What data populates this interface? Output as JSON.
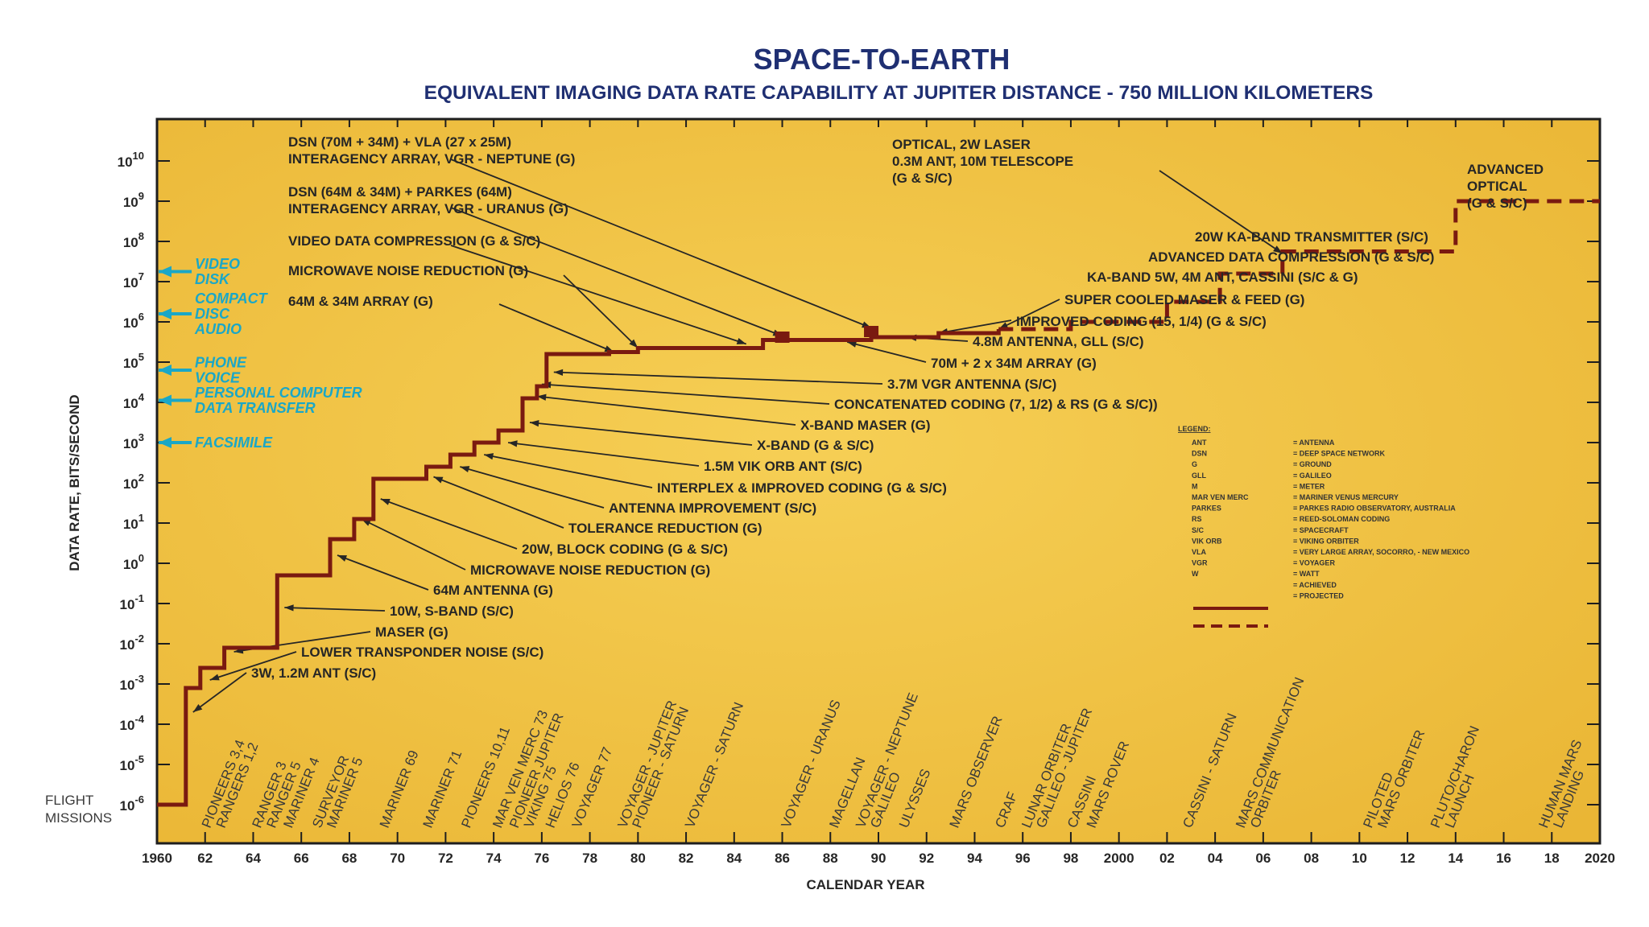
{
  "chart_data": {
    "type": "line",
    "title": "SPACE-TO-EARTH",
    "subtitle": "EQUIVALENT IMAGING DATA RATE CAPABILITY AT JUPITER DISTANCE - 750 MILLION KILOMETERS",
    "xlabel": "CALENDAR YEAR",
    "ylabel": "DATA RATE, BITS/SECOND",
    "xlim": [
      1960,
      2020
    ],
    "ylim_exponent": [
      -6,
      10
    ],
    "y_scale": "log",
    "grid": false,
    "x_ticks": [
      {
        "year": 1960,
        "label": "1960"
      },
      {
        "year": 1962,
        "label": "62"
      },
      {
        "year": 1964,
        "label": "64"
      },
      {
        "year": 1966,
        "label": "66"
      },
      {
        "year": 1968,
        "label": "68"
      },
      {
        "year": 1970,
        "label": "70"
      },
      {
        "year": 1972,
        "label": "72"
      },
      {
        "year": 1974,
        "label": "74"
      },
      {
        "year": 1976,
        "label": "76"
      },
      {
        "year": 1978,
        "label": "78"
      },
      {
        "year": 1980,
        "label": "80"
      },
      {
        "year": 1982,
        "label": "82"
      },
      {
        "year": 1984,
        "label": "84"
      },
      {
        "year": 1986,
        "label": "86"
      },
      {
        "year": 1988,
        "label": "88"
      },
      {
        "year": 1990,
        "label": "90"
      },
      {
        "year": 1992,
        "label": "92"
      },
      {
        "year": 1994,
        "label": "94"
      },
      {
        "year": 1996,
        "label": "96"
      },
      {
        "year": 1998,
        "label": "98"
      },
      {
        "year": 2000,
        "label": "2000"
      },
      {
        "year": 2002,
        "label": "02"
      },
      {
        "year": 2004,
        "label": "04"
      },
      {
        "year": 2006,
        "label": "06"
      },
      {
        "year": 2008,
        "label": "08"
      },
      {
        "year": 2010,
        "label": "10"
      },
      {
        "year": 2012,
        "label": "12"
      },
      {
        "year": 2014,
        "label": "14"
      },
      {
        "year": 2016,
        "label": "16"
      },
      {
        "year": 2018,
        "label": "18"
      },
      {
        "year": 2020,
        "label": "2020"
      }
    ],
    "y_ticks": [
      10,
      9,
      8,
      7,
      6,
      5,
      4,
      3,
      2,
      1,
      0,
      -1,
      -2,
      -3,
      -4,
      -5,
      -6
    ],
    "y_tick_base": "10",
    "series": [
      {
        "name": "ACHIEVED",
        "style": "solid",
        "color": "#7a1a10",
        "points": [
          [
            1960,
            -6
          ],
          [
            1961.2,
            -6
          ],
          [
            1961.2,
            -3.1
          ],
          [
            1961.8,
            -3.1
          ],
          [
            1961.8,
            -2.6
          ],
          [
            1962.8,
            -2.6
          ],
          [
            1962.8,
            -2.1
          ],
          [
            1965,
            -2.1
          ],
          [
            1965,
            -0.3
          ],
          [
            1967.2,
            -0.3
          ],
          [
            1967.2,
            0.6
          ],
          [
            1968.2,
            0.6
          ],
          [
            1968.2,
            1.1
          ],
          [
            1969,
            1.1
          ],
          [
            1969,
            2.1
          ],
          [
            1971.2,
            2.1
          ],
          [
            1971.2,
            2.4
          ],
          [
            1972.2,
            2.4
          ],
          [
            1972.2,
            2.7
          ],
          [
            1973.2,
            2.7
          ],
          [
            1973.2,
            3.0
          ],
          [
            1974.2,
            3.0
          ],
          [
            1974.2,
            3.3
          ],
          [
            1975.2,
            3.3
          ],
          [
            1975.2,
            4.1
          ],
          [
            1975.8,
            4.1
          ],
          [
            1975.8,
            4.4
          ],
          [
            1976.2,
            4.4
          ],
          [
            1976.2,
            5.2
          ],
          [
            1978.8,
            5.2
          ],
          [
            1978.8,
            5.25
          ],
          [
            1980,
            5.25
          ],
          [
            1980,
            5.35
          ],
          [
            1985.2,
            5.35
          ],
          [
            1985.2,
            5.55
          ],
          [
            1989.7,
            5.55
          ],
          [
            1989.7,
            5.62
          ],
          [
            1992.5,
            5.62
          ],
          [
            1992.5,
            5.72
          ],
          [
            1995,
            5.72
          ],
          [
            1995,
            5.82
          ]
        ]
      },
      {
        "name": "PROJECTED",
        "style": "dashed",
        "color": "#7a1a10",
        "points": [
          [
            1995,
            5.82
          ],
          [
            1998,
            5.82
          ],
          [
            1998,
            6.0
          ],
          [
            2002,
            6.0
          ],
          [
            2002,
            6.5
          ],
          [
            2004.2,
            6.5
          ],
          [
            2004.2,
            7.2
          ],
          [
            2006.8,
            7.2
          ],
          [
            2006.8,
            7.75
          ],
          [
            2014,
            7.75
          ],
          [
            2014,
            9.0
          ],
          [
            2020,
            9.0
          ]
        ]
      }
    ],
    "benchmarks": [
      {
        "lines": [
          "VIDEO",
          "DISK"
        ],
        "exponent": 7.25
      },
      {
        "lines": [
          "COMPACT",
          "DISC",
          "AUDIO"
        ],
        "exponent": 6.2
      },
      {
        "lines": [
          "PHONE",
          "VOICE"
        ],
        "exponent": 4.8
      },
      {
        "lines": [
          "PERSONAL COMPUTER",
          "DATA TRANSFER"
        ],
        "exponent": 4.05
      },
      {
        "lines": [
          "FACSIMILE"
        ],
        "exponent": 3.0
      }
    ],
    "annotations": [
      {
        "lines": [
          "DSN (70M + 34M) + VLA (27 x 25M)",
          "INTERAGENCY ARRAY, VGR - NEPTUNE (G)"
        ],
        "target": [
          1989.7,
          5.85
        ]
      },
      {
        "lines": [
          "DSN (64M & 34M) + PARKES (64M)",
          "INTERAGENCY ARRAY, VGR - URANUS (G)"
        ],
        "target": [
          1986,
          5.65
        ]
      },
      {
        "lines": [
          "VIDEO DATA COMPRESSION (G & S/C)"
        ],
        "target": [
          1984.5,
          5.45
        ]
      },
      {
        "lines": [
          "MICROWAVE NOISE REDUCTION (G)"
        ],
        "target": [
          1980,
          5.35
        ]
      },
      {
        "lines": [
          "64M & 34M ARRAY (G)"
        ],
        "target": [
          1979,
          5.25
        ]
      },
      {
        "lines": [
          "OPTICAL, 2W LASER",
          "0.3M ANT, 10M TELESCOPE",
          "(G & S/C)"
        ],
        "target": [
          2006.8,
          7.7
        ]
      },
      {
        "lines": [
          "ADVANCED",
          "OPTICAL",
          "(G & S/C)"
        ],
        "target": null
      },
      {
        "lines": [
          "20W KA-BAND TRANSMITTER (S/C)"
        ],
        "target": null
      },
      {
        "lines": [
          "ADVANCED DATA COMPRESSION (G & S/C)"
        ],
        "target": null
      },
      {
        "lines": [
          "KA-BAND 5W, 4M ANT, CASSINI (S/C & G)"
        ],
        "target": null
      },
      {
        "lines": [
          "SUPER COOLED MASER & FEED (G)"
        ],
        "target": [
          1995,
          5.82
        ]
      },
      {
        "lines": [
          "IMPROVED CODING (15, 1/4) (G & S/C)"
        ],
        "target": [
          1992.5,
          5.72
        ]
      },
      {
        "lines": [
          "4.8M ANTENNA, GLL (S/C)"
        ],
        "target": [
          1991.2,
          5.62
        ]
      },
      {
        "lines": [
          "70M + 2 x 34M ARRAY (G)"
        ],
        "target": [
          1988.7,
          5.5
        ]
      },
      {
        "lines": [
          "3.7M VGR ANTENNA (S/C)"
        ],
        "target": [
          1976.5,
          4.75
        ]
      },
      {
        "lines": [
          "CONCATENATED CODING (7, 1/2) & RS (G & S/C))"
        ],
        "target": [
          1976.0,
          4.45
        ]
      },
      {
        "lines": [
          "X-BAND MASER (G)"
        ],
        "target": [
          1975.8,
          4.15
        ]
      },
      {
        "lines": [
          "X-BAND (G & S/C)"
        ],
        "target": [
          1975.5,
          3.5
        ]
      },
      {
        "lines": [
          "1.5M VIK ORB ANT (S/C)"
        ],
        "target": [
          1174.6,
          3.0
        ]
      },
      {
        "lines": [
          "INTERPLEX & IMPROVED CODING (G & S/C)"
        ],
        "target": [
          1973.6,
          2.7
        ]
      },
      {
        "lines": [
          "ANTENNA IMPROVEMENT (S/C)"
        ],
        "target": [
          1972.6,
          2.4
        ]
      },
      {
        "lines": [
          "TOLERANCE REDUCTION (G)"
        ],
        "target": [
          1971.5,
          2.15
        ]
      },
      {
        "lines": [
          "20W,  BLOCK CODING (G & S/C)"
        ],
        "target": [
          1969.3,
          1.6
        ]
      },
      {
        "lines": [
          "MICROWAVE NOISE REDUCTION (G)"
        ],
        "target": [
          1968.5,
          1.1
        ]
      },
      {
        "lines": [
          "64M ANTENNA (G)"
        ],
        "target": [
          1967.5,
          0.2
        ]
      },
      {
        "lines": [
          "10W, S-BAND (S/C)"
        ],
        "target": [
          1965.3,
          -1.1
        ]
      },
      {
        "lines": [
          "MASER (G)"
        ],
        "target": [
          1963.2,
          -2.2
        ]
      },
      {
        "lines": [
          "LOWER TRANSPONDER NOISE (S/C)"
        ],
        "target": [
          1962.2,
          -2.9
        ]
      },
      {
        "lines": [
          "3W, 1.2M ANT (S/C)"
        ],
        "target": [
          1961.5,
          -3.7
        ]
      }
    ],
    "legend": {
      "title": "LEGEND:",
      "placement": "right",
      "entries": [
        [
          "ANT",
          "= ANTENNA"
        ],
        [
          "DSN",
          "= DEEP SPACE NETWORK"
        ],
        [
          "G",
          "= GROUND"
        ],
        [
          "GLL",
          "= GALILEO"
        ],
        [
          "M",
          "= METER"
        ],
        [
          "MAR VEN MERC",
          "= MARINER VENUS MERCURY"
        ],
        [
          "PARKES",
          "= PARKES RADIO OBSERVATORY, AUSTRALIA"
        ],
        [
          "RS",
          "= REED-SOLOMAN CODING"
        ],
        [
          "S/C",
          "= SPACECRAFT"
        ],
        [
          "VIK ORB",
          "= VIKING ORBITER"
        ],
        [
          "VLA",
          "= VERY LARGE ARRAY, SOCORRO, - NEW MEXICO"
        ],
        [
          "VGR",
          "= VOYAGER"
        ],
        [
          "W",
          "= WATT"
        ]
      ],
      "line_entries": [
        {
          "label": "= ACHIEVED",
          "style": "solid"
        },
        {
          "label": "= PROJECTED",
          "style": "dashed"
        }
      ]
    },
    "flight_missions_label": [
      "FLIGHT",
      "MISSIONS"
    ],
    "missions": [
      {
        "year": 1962.2,
        "lines": [
          "PIONEERS 3,4",
          "RANGERS 1,2"
        ]
      },
      {
        "year": 1964.3,
        "lines": [
          "RANGER 3",
          "RANGER 5"
        ]
      },
      {
        "year": 1965.6,
        "lines": [
          "MARINER 4"
        ]
      },
      {
        "year": 1966.8,
        "lines": [
          "SURVEYOR",
          "MARINER 5"
        ]
      },
      {
        "year": 1969.6,
        "lines": [
          "MARINER 69"
        ]
      },
      {
        "year": 1971.4,
        "lines": [
          "MARINER 71"
        ]
      },
      {
        "year": 1973.0,
        "lines": [
          "PIONEERS 10,11"
        ]
      },
      {
        "year": 1974.3,
        "lines": [
          "MAR VEN MERC 73"
        ]
      },
      {
        "year": 1975.0,
        "lines": [
          "PIONEER JUPITER",
          "VIKING 75"
        ]
      },
      {
        "year": 1976.5,
        "lines": [
          "HELIOS 76"
        ]
      },
      {
        "year": 1977.6,
        "lines": [
          "VOYAGER 77"
        ]
      },
      {
        "year": 1979.5,
        "lines": [
          "VOYAGER - JUPITER",
          "PIONEER - SATURN"
        ]
      },
      {
        "year": 1982.3,
        "lines": [
          "VOYAGER - SATURN"
        ]
      },
      {
        "year": 1986.3,
        "lines": [
          "VOYAGER - URANUS"
        ]
      },
      {
        "year": 1988.3,
        "lines": [
          "MAGELLAN"
        ]
      },
      {
        "year": 1989.4,
        "lines": [
          "VOYAGER - NEPTUNE",
          "GALILEO"
        ]
      },
      {
        "year": 1991.2,
        "lines": [
          "ULYSSES"
        ]
      },
      {
        "year": 1993.3,
        "lines": [
          "MARS OBSERVER"
        ]
      },
      {
        "year": 1995.2,
        "lines": [
          "CRAF"
        ]
      },
      {
        "year": 1996.3,
        "lines": [
          "LUNAR ORBITER",
          "GALILEO - JUPITER"
        ]
      },
      {
        "year": 1998.2,
        "lines": [
          "CASSINI"
        ]
      },
      {
        "year": 1999.0,
        "lines": [
          "MARS ROVER"
        ]
      },
      {
        "year": 2003.0,
        "lines": [
          "CASSINI - SATURN"
        ]
      },
      {
        "year": 2005.2,
        "lines": [
          "MARS COMMUNICATION",
          "ORBITER"
        ]
      },
      {
        "year": 2010.5,
        "lines": [
          "PILOTED",
          "MARS ORBITER"
        ]
      },
      {
        "year": 2013.3,
        "lines": [
          "PLUTO/CHARON",
          "LAUNCH"
        ]
      },
      {
        "year": 2017.8,
        "lines": [
          "HUMAN MARS",
          "LANDING"
        ]
      }
    ],
    "colors": {
      "plot_background": "#f3c23f",
      "frame": "#1e1e1e",
      "curve": "#7a1a10",
      "benchmark": "#1aa7c7",
      "title": "#1f2f72"
    }
  }
}
